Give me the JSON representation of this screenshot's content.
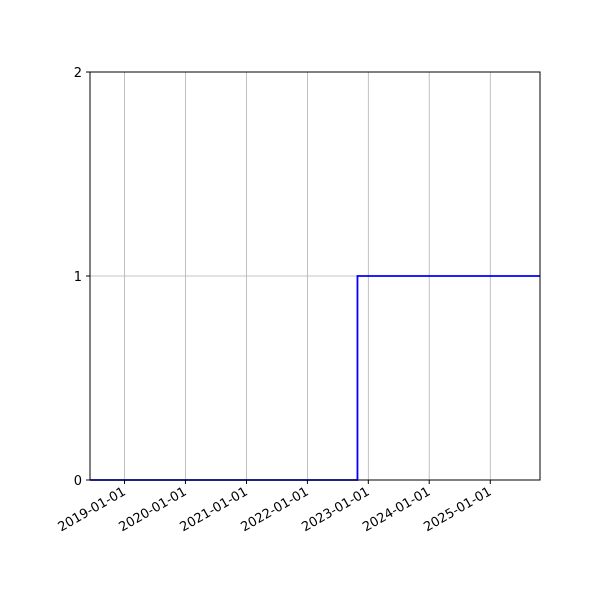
{
  "chart_data": {
    "type": "line",
    "step": "post",
    "title": "",
    "xlabel": "",
    "ylabel": "",
    "x_type": "date",
    "xlim": [
      "2018-06-08",
      "2025-10-26"
    ],
    "ylim": [
      0,
      2
    ],
    "x_ticks": [
      "2019-01-01",
      "2020-01-01",
      "2021-01-01",
      "2022-01-01",
      "2023-01-01",
      "2024-01-01",
      "2025-01-01"
    ],
    "y_ticks": [
      "0",
      "1",
      "2"
    ],
    "grid": true,
    "series": [
      {
        "color": "#0000ff",
        "x": [
          "2018-06-08",
          "2022-10-28",
          "2025-10-26"
        ],
        "y": [
          0,
          1,
          1
        ]
      }
    ]
  }
}
